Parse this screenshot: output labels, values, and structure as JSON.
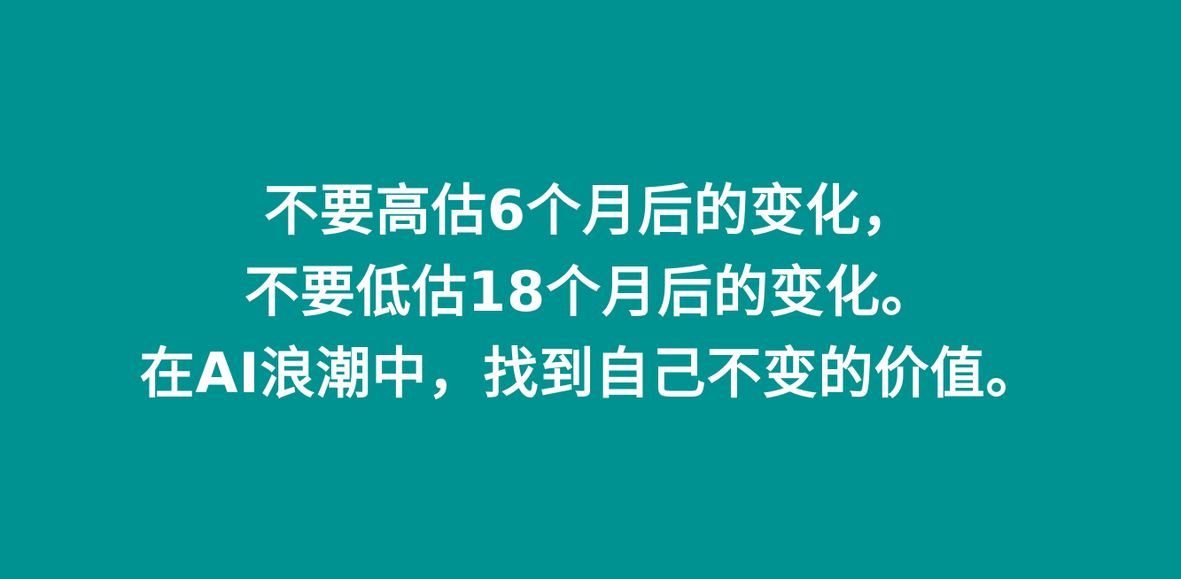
{
  "background_color": "#009290",
  "text_color": "#ffffff",
  "quote": {
    "line1": "不要高估6个月后的变化，",
    "line2": "不要低估18个月后的变化。",
    "line3": "在AI浪潮中，找到自己不变的价值。"
  }
}
